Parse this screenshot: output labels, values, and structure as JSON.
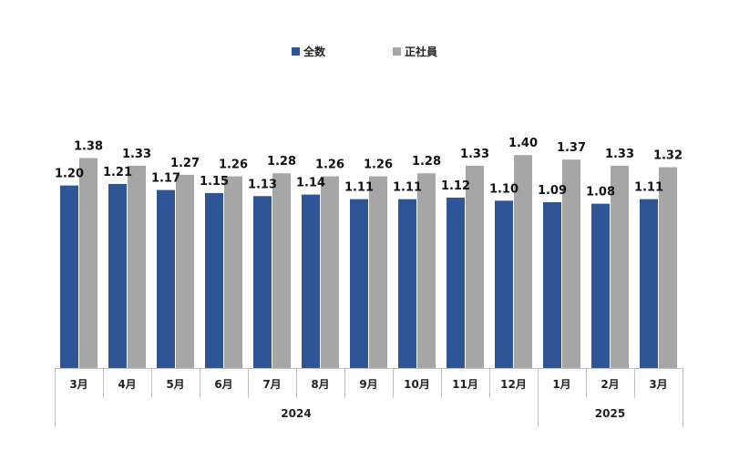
{
  "chart_data": {
    "type": "bar",
    "categories": [
      "3月",
      "4月",
      "5月",
      "6月",
      "7月",
      "8月",
      "9月",
      "10月",
      "11月",
      "12月",
      "1月",
      "2月",
      "3月"
    ],
    "year_groups": [
      {
        "label": "2024",
        "count": 10
      },
      {
        "label": "2025",
        "count": 3
      }
    ],
    "series": [
      {
        "name": "全数",
        "color": "#2f5597",
        "values": [
          1.2,
          1.21,
          1.17,
          1.15,
          1.13,
          1.14,
          1.11,
          1.11,
          1.12,
          1.1,
          1.09,
          1.08,
          1.11
        ],
        "labels": [
          "1.20",
          "1.21",
          "1.17",
          "1.15",
          "1.13",
          "1.14",
          "1.11",
          "1.11",
          "1.12",
          "1.10",
          "1.09",
          "1.08",
          "1.11"
        ]
      },
      {
        "name": "正社員",
        "color": "#a6a6a6",
        "values": [
          1.38,
          1.33,
          1.27,
          1.26,
          1.28,
          1.26,
          1.26,
          1.28,
          1.33,
          1.4,
          1.37,
          1.33,
          1.32
        ],
        "labels": [
          "1.38",
          "1.33",
          "1.27",
          "1.26",
          "1.28",
          "1.26",
          "1.26",
          "1.28",
          "1.33",
          "1.40",
          "1.37",
          "1.33",
          "1.32"
        ]
      }
    ],
    "ylim": [
      0,
      1.65
    ],
    "grid": false,
    "legend_position": "top-center",
    "title": "",
    "xlabel": "",
    "ylabel": ""
  }
}
